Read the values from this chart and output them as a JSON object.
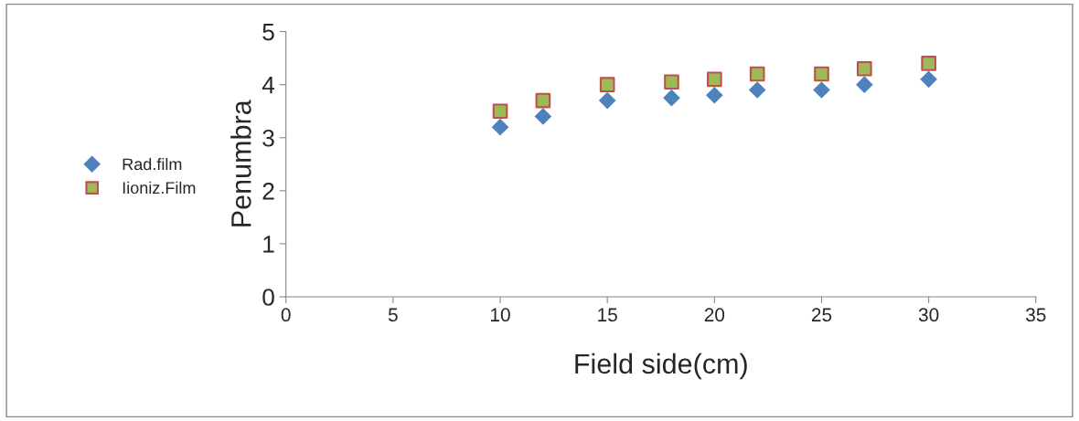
{
  "chart_data": {
    "type": "scatter",
    "xlabel": "Field side(cm)",
    "ylabel": "Penumbra",
    "x": [
      10,
      12,
      15,
      18,
      20,
      22,
      25,
      27,
      30
    ],
    "series": [
      {
        "name": "Rad.film",
        "color": "#4f81bd",
        "marker": "diamond",
        "values": [
          3.2,
          3.4,
          3.7,
          3.75,
          3.8,
          3.9,
          3.9,
          4.0,
          4.1
        ]
      },
      {
        "name": "Iioniz.Film",
        "color": "#9bbb59",
        "marker": "square",
        "values": [
          3.5,
          3.7,
          4.0,
          4.05,
          4.1,
          4.2,
          4.2,
          4.3,
          4.4
        ]
      }
    ],
    "xlim": [
      0,
      35
    ],
    "xticks": [
      0,
      5,
      10,
      15,
      20,
      25,
      30,
      35
    ],
    "ylim": [
      0,
      5
    ],
    "yticks": [
      0,
      1,
      2,
      3,
      4,
      5
    ],
    "grid": false,
    "legend": "left"
  }
}
